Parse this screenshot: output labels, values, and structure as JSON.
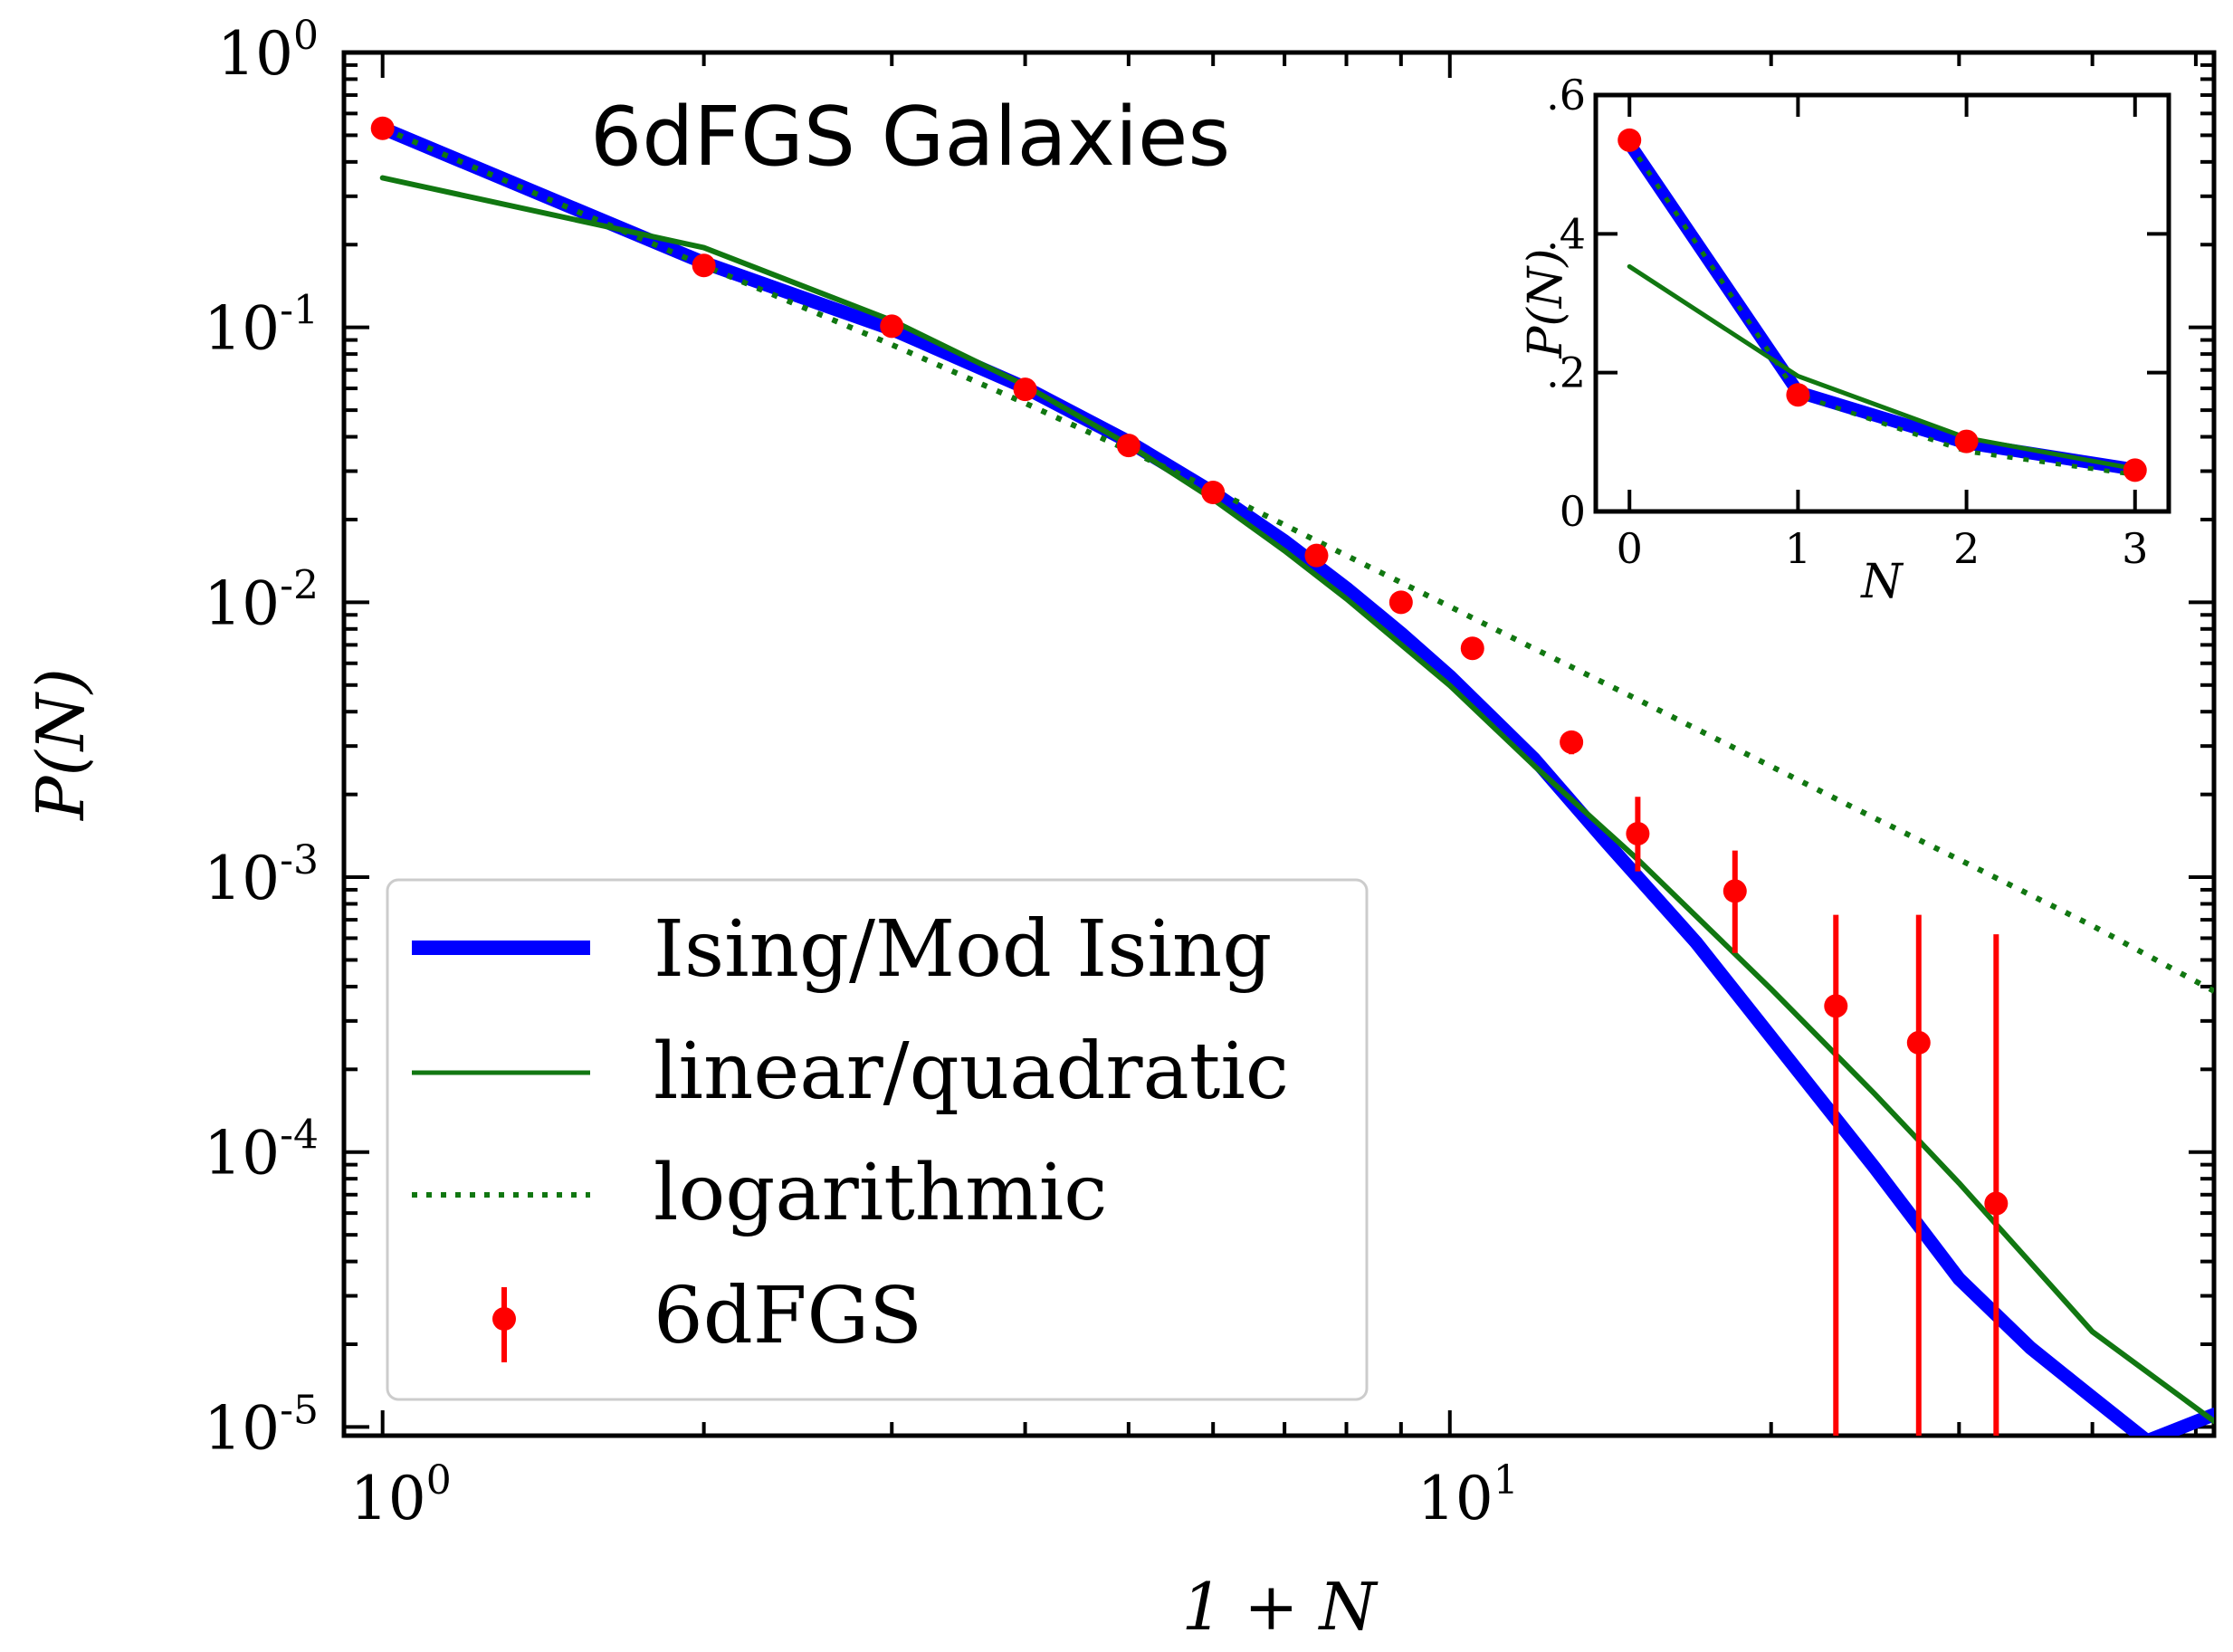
{
  "chart_data": [
    {
      "type": "line",
      "title": "6dFGS Galaxies",
      "xlabel": "1 + N",
      "ylabel": "P(N)",
      "xscale": "log",
      "yscale": "log",
      "xlim": [
        0.92,
        52
      ],
      "ylim": [
        9.3e-06,
        1.0
      ],
      "x_ticks": [
        {
          "value": 1,
          "base": "10",
          "exp": "0"
        },
        {
          "value": 10,
          "base": "10",
          "exp": "1"
        }
      ],
      "y_ticks": [
        {
          "value": 1,
          "base": "10",
          "exp": "0"
        },
        {
          "value": 0.1,
          "base": "10",
          "exp": "-1"
        },
        {
          "value": 0.01,
          "base": "10",
          "exp": "-2"
        },
        {
          "value": 0.001,
          "base": "10",
          "exp": "-3"
        },
        {
          "value": 0.0001,
          "base": "10",
          "exp": "-4"
        },
        {
          "value": 1e-05,
          "base": "10",
          "exp": "-5"
        }
      ],
      "grid": false,
      "legend_position": "lower-left",
      "series": [
        {
          "name": "Ising/Mod Ising",
          "style": "thick-solid",
          "color": "#0000ff",
          "x": [
            1,
            2,
            3,
            4,
            5,
            6,
            7,
            8,
            9,
            10,
            12,
            14,
            17,
            20,
            25,
            30,
            35,
            40,
            45,
            52
          ],
          "y": [
            0.53,
            0.172,
            0.0985,
            0.0604,
            0.0384,
            0.0251,
            0.0167,
            0.01125,
            0.00772,
            0.00538,
            0.00269,
            0.00135,
            0.000581,
            0.000262,
            8.78e-05,
            3.46e-05,
            1.94e-05,
            1.28e-05,
            8.9e-06,
            1.11e-05
          ]
        },
        {
          "name": "linear/quadratic",
          "style": "solid",
          "color": "#117711",
          "x": [
            1,
            2,
            3,
            4,
            5,
            6,
            7,
            8,
            10,
            12,
            15,
            20,
            25,
            30,
            40,
            52
          ],
          "y": [
            0.35,
            0.195,
            0.106,
            0.0615,
            0.0374,
            0.0237,
            0.0154,
            0.0103,
            0.00498,
            0.00254,
            0.00116,
            0.000392,
            0.000163,
            7.72e-05,
            2.22e-05,
            1.05e-05
          ]
        },
        {
          "name": "logarithmic",
          "style": "dotted",
          "color": "#117711",
          "x": [
            1,
            2,
            3,
            4,
            5,
            6,
            8,
            10,
            12,
            15,
            20,
            25,
            30,
            40,
            52
          ],
          "y": [
            0.53,
            0.168,
            0.0865,
            0.053,
            0.0357,
            0.0257,
            0.0148,
            0.00965,
            0.00678,
            0.00443,
            0.00253,
            0.00164,
            0.00116,
            0.000666,
            0.000385
          ]
        },
        {
          "name": "6dFGS",
          "style": "errorbar-points",
          "color": "#ff0000",
          "x": [
            1,
            2,
            3,
            4,
            5,
            6,
            7.5,
            9,
            10.5,
            13,
            15,
            18.5,
            23,
            27.5,
            32.5
          ],
          "y": [
            0.53,
            0.168,
            0.101,
            0.0595,
            0.0372,
            0.0251,
            0.0148,
            0.01,
            0.0068,
            0.0031,
            0.00144,
            0.00089,
            0.00034,
            0.00025,
            6.5e-05
          ],
          "yerr_low": [
            0.52,
            0.164,
            0.097,
            0.057,
            0.0356,
            0.024,
            0.0141,
            0.0096,
            0.0065,
            0.0028,
            0.00105,
            0.00053,
            9.3e-06,
            9.3e-06,
            9.3e-06
          ],
          "yerr_high": [
            0.54,
            0.172,
            0.105,
            0.062,
            0.0388,
            0.0262,
            0.0155,
            0.0104,
            0.0071,
            0.0034,
            0.00196,
            0.00125,
            0.00073,
            0.00073,
            0.00062
          ]
        }
      ]
    },
    {
      "type": "line",
      "title": "",
      "xlabel": "N",
      "ylabel": "P(N)",
      "xscale": "linear",
      "yscale": "linear",
      "xlim": [
        -0.2,
        3.2
      ],
      "ylim": [
        0,
        0.6
      ],
      "x_ticks": [
        "0",
        "1",
        "2",
        "3"
      ],
      "x_tick_values": [
        0,
        1,
        2,
        3
      ],
      "y_ticks": [
        "0",
        ".2",
        ".4",
        ".6"
      ],
      "y_tick_values": [
        0,
        0.2,
        0.4,
        0.6
      ],
      "grid": false,
      "series": [
        {
          "name": "Ising/Mod Ising",
          "style": "thick-solid",
          "color": "#0000ff",
          "x": [
            0,
            1,
            2,
            3
          ],
          "y": [
            0.53,
            0.172,
            0.0985,
            0.0604
          ]
        },
        {
          "name": "linear/quadratic",
          "style": "solid",
          "color": "#117711",
          "x": [
            0,
            1,
            2,
            3
          ],
          "y": [
            0.353,
            0.195,
            0.106,
            0.0615
          ]
        },
        {
          "name": "logarithmic",
          "style": "dotted",
          "color": "#117711",
          "x": [
            0,
            1,
            2,
            3
          ],
          "y": [
            0.53,
            0.168,
            0.0865,
            0.053
          ]
        },
        {
          "name": "6dFGS",
          "style": "points",
          "color": "#ff0000",
          "x": [
            0,
            1,
            2,
            3
          ],
          "y": [
            0.535,
            0.168,
            0.101,
            0.0595
          ]
        }
      ]
    }
  ]
}
